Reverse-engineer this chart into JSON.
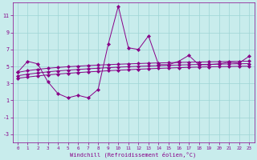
{
  "xlabel": "Windchill (Refroidissement éolien,°C)",
  "background_color": "#c8ecec",
  "grid_color": "#9ed4d4",
  "line_color": "#880088",
  "xlim": [
    -0.5,
    23.5
  ],
  "ylim": [
    -4,
    12.5
  ],
  "yticks": [
    -3,
    -1,
    1,
    3,
    5,
    7,
    9,
    11
  ],
  "xticks": [
    0,
    1,
    2,
    3,
    4,
    5,
    6,
    7,
    8,
    9,
    10,
    11,
    12,
    13,
    14,
    15,
    16,
    17,
    18,
    19,
    20,
    21,
    22,
    23
  ],
  "line1_x": [
    0,
    1,
    2,
    3,
    4,
    5,
    6,
    7,
    8,
    9,
    10,
    11,
    12,
    13,
    14,
    15,
    16,
    17,
    18,
    19,
    20,
    21,
    22,
    23
  ],
  "line1_y": [
    4.3,
    5.6,
    5.3,
    3.2,
    1.8,
    1.3,
    1.6,
    1.3,
    2.3,
    7.6,
    12.1,
    7.2,
    7.0,
    8.6,
    5.2,
    5.2,
    5.6,
    6.3,
    5.2,
    5.2,
    5.3,
    5.5,
    5.4,
    6.2
  ],
  "line2_x": [
    0,
    1,
    2,
    3,
    4,
    5,
    6,
    7,
    8,
    9,
    10,
    11,
    12,
    13,
    14,
    15,
    16,
    17,
    18,
    19,
    20,
    21,
    22,
    23
  ],
  "line2_y": [
    4.3,
    4.5,
    4.65,
    4.78,
    4.88,
    4.96,
    5.03,
    5.1,
    5.16,
    5.21,
    5.26,
    5.3,
    5.34,
    5.38,
    5.41,
    5.44,
    5.47,
    5.5,
    5.52,
    5.54,
    5.56,
    5.58,
    5.6,
    5.62
  ],
  "line3_x": [
    0,
    1,
    2,
    3,
    4,
    5,
    6,
    7,
    8,
    9,
    10,
    11,
    12,
    13,
    14,
    15,
    16,
    17,
    18,
    19,
    20,
    21,
    22,
    23
  ],
  "line3_y": [
    3.9,
    4.08,
    4.23,
    4.36,
    4.47,
    4.56,
    4.64,
    4.72,
    4.79,
    4.85,
    4.91,
    4.96,
    5.01,
    5.05,
    5.09,
    5.13,
    5.17,
    5.2,
    5.23,
    5.25,
    5.27,
    5.29,
    5.31,
    5.33
  ],
  "line4_x": [
    0,
    1,
    2,
    3,
    4,
    5,
    6,
    7,
    8,
    9,
    10,
    11,
    12,
    13,
    14,
    15,
    16,
    17,
    18,
    19,
    20,
    21,
    22,
    23
  ],
  "line4_y": [
    3.6,
    3.75,
    3.88,
    4.0,
    4.1,
    4.19,
    4.27,
    4.35,
    4.42,
    4.49,
    4.55,
    4.61,
    4.67,
    4.72,
    4.77,
    4.81,
    4.85,
    4.89,
    4.92,
    4.95,
    4.97,
    4.99,
    5.01,
    5.03
  ]
}
